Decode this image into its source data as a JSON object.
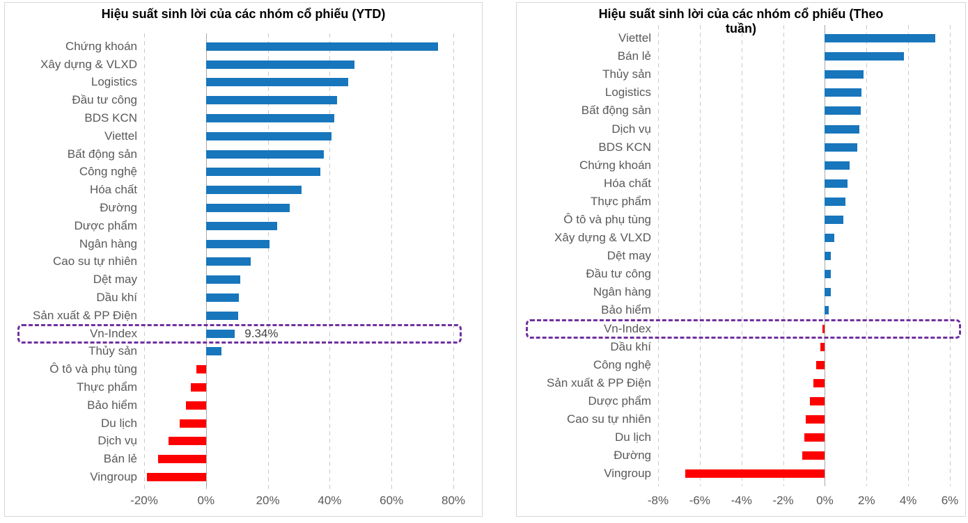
{
  "page": {
    "background": "#ffffff",
    "panel_border_color": "#d6d6d6"
  },
  "chart_data": [
    {
      "type": "bar",
      "orientation": "horizontal",
      "title": "Hiệu suất sinh lời của các nhóm cổ phiếu (YTD)",
      "title_lines": [
        "Hiệu suất sinh lời của các nhóm cổ phiếu (YTD)"
      ],
      "unit": "%",
      "xlim": [
        -20,
        80
      ],
      "xticks": [
        -20,
        0,
        20,
        40,
        60,
        80
      ],
      "xtick_labels": [
        "-20%",
        "0%",
        "20%",
        "40%",
        "60%",
        "80%"
      ],
      "grid": "dashed-vertical",
      "legend": "none",
      "categories": [
        "Chứng khoán",
        "Xây dựng & VLXD",
        "Logistics",
        "Đầu tư công",
        "BDS KCN",
        "Viettel",
        "Bất động sản",
        "Công nghệ",
        "Hóa chất",
        "Đường",
        "Dược phẩm",
        "Ngân hàng",
        "Cao su tự nhiên",
        "Dệt may",
        "Dầu khí",
        "Sản xuất & PP Điện",
        "Vn-Index",
        "Thủy sản",
        "Ô tô và phụ tùng",
        "Thực phẩm",
        "Bảo hiểm",
        "Du lịch",
        "Dịch vụ",
        "Bán lẻ",
        "Vingroup"
      ],
      "values": [
        75,
        48,
        46,
        42.5,
        41.5,
        40.5,
        38,
        37,
        31,
        27,
        23,
        20.5,
        14.5,
        11,
        10.7,
        10.3,
        9.34,
        5,
        -3,
        -4.8,
        -6.4,
        -8.5,
        -12.2,
        -15.5,
        -19
      ],
      "highlight_category": "Vn-Index",
      "highlight_value_label": "9.34%",
      "colors": {
        "positive": "#1776bc",
        "negative": "#ff0000",
        "highlight_box": "#7030a0",
        "gridline": "#c9c9c9",
        "zero_axis": "#a6a6a6",
        "labels": "#595959",
        "title": "#000000"
      }
    },
    {
      "type": "bar",
      "orientation": "horizontal",
      "title": "Hiệu suất sinh lời của các nhóm cổ phiếu (Theo tuần)",
      "title_lines": [
        "Hiệu suất sinh lời của các nhóm cổ phiếu (Theo",
        "tuần)"
      ],
      "unit": "%",
      "xlim": [
        -8,
        6
      ],
      "xticks": [
        -8,
        -6,
        -4,
        -2,
        0,
        2,
        4,
        6
      ],
      "xtick_labels": [
        "-8%",
        "-6%",
        "-4%",
        "-2%",
        "0%",
        "2%",
        "4%",
        "6%"
      ],
      "grid": "dashed-vertical",
      "legend": "none",
      "categories": [
        "Viettel",
        "Bán lẻ",
        "Thủy sản",
        "Logistics",
        "Bất động sản",
        "Dịch vụ",
        "BDS KCN",
        "Chứng khoán",
        "Hóa chất",
        "Thực phẩm",
        "Ô tô và phụ tùng",
        "Xây dựng & VLXD",
        "Dệt may",
        "Đầu tư công",
        "Ngân hàng",
        "Bảo hiểm",
        "Vn-Index",
        "Dầu khí",
        "Công nghệ",
        "Sản xuất & PP Điện",
        "Dược phẩm",
        "Cao su tự nhiên",
        "Du lịch",
        "Đường",
        "Vingroup"
      ],
      "values": [
        5.3,
        3.8,
        1.85,
        1.75,
        1.73,
        1.65,
        1.55,
        1.2,
        1.1,
        1.0,
        0.9,
        0.45,
        0.3,
        0.3,
        0.3,
        0.2,
        -0.1,
        -0.2,
        -0.4,
        -0.55,
        -0.7,
        -0.9,
        -1.0,
        -1.1,
        -6.7
      ],
      "highlight_category": "Vn-Index",
      "highlight_value_label": "",
      "colors": {
        "positive": "#1776bc",
        "negative": "#ff0000",
        "highlight_box": "#7030a0",
        "gridline": "#c9c9c9",
        "zero_axis": "#a6a6a6",
        "labels": "#595959",
        "title": "#000000"
      }
    }
  ]
}
